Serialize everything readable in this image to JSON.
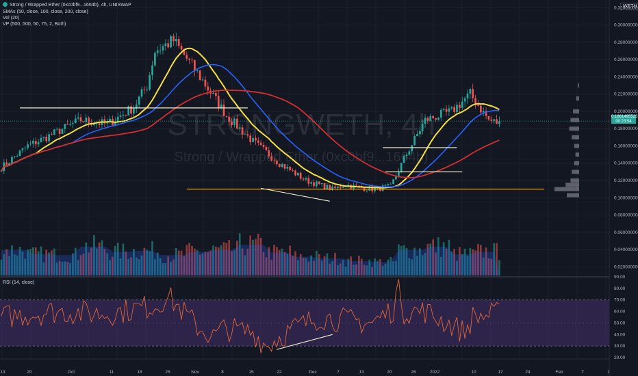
{
  "header": {
    "title": "Strong / Wrapped Ether (0xc0bf9...1664b), 4h, UNISWAP",
    "sma_label": "SMAs (50, close, 100, close, 200, close)",
    "vol_label": "Vol (20)",
    "vp_label": "VP (500, 500, 50, 75, 2, Both)",
    "currency": "WETH"
  },
  "price_badge": {
    "price": "0.1861495523",
    "sub": "00:23:54"
  },
  "rsi_label": "RSI (14, close)",
  "watermark": {
    "symbol": "STRONGWETH, 4h",
    "name": "Strong / Wrapped Ether (0xc0bf9...1664b)"
  },
  "colors": {
    "background": "#131722",
    "up": "#26a69a",
    "down": "#ef5350",
    "sma50": "#f5e042",
    "sma100": "#2962ff",
    "sma200": "#d32f2f",
    "hline_white": "#f0f0d0",
    "hline_orange": "#f5a623",
    "rsi_line": "#e0683b",
    "rsi_band": "#3b2a5a"
  },
  "chart_data": [
    {
      "type": "candlestick",
      "price_axis": {
        "ticks": [
          "0.3200000000",
          "0.3000000000",
          "0.2800000000",
          "0.2600000000",
          "0.2400000000",
          "0.2200000000",
          "0.2000000000",
          "0.1800000000",
          "0.1600000000",
          "0.1400000000",
          "0.1200000000",
          "0.1000000000",
          "0.0800000000",
          "0.0600000000",
          "0.0400000000",
          "0.0200000000"
        ],
        "ylim": [
          0.01,
          0.325
        ]
      },
      "time_axis": {
        "ticks": [
          "13",
          "20",
          "Oct",
          "11",
          "18",
          "25",
          "Nov",
          "8",
          "15",
          "22",
          "Dec",
          "7",
          "13",
          "20",
          "26",
          "2022",
          "10",
          "17",
          "24",
          "Feb",
          "7",
          "1"
        ]
      },
      "anchors": {
        "x": [
          0,
          10,
          17,
          22,
          30,
          40,
          50,
          55,
          58,
          65,
          75,
          85,
          95,
          105,
          115,
          125,
          130,
          135,
          140,
          147,
          152,
          160,
          170,
          177,
          184,
          188
        ],
        "close": [
          0.135,
          0.16,
          0.17,
          0.178,
          0.19,
          0.185,
          0.205,
          0.23,
          0.27,
          0.282,
          0.24,
          0.195,
          0.165,
          0.14,
          0.12,
          0.11,
          0.115,
          0.112,
          0.11,
          0.113,
          0.145,
          0.19,
          0.2,
          0.22,
          0.19,
          0.186
        ]
      },
      "bars": 189,
      "smas": [
        {
          "name": "SMA 50"
        },
        {
          "name": "SMA 100"
        },
        {
          "name": "SMA 200"
        }
      ],
      "volume": {
        "anchors": [
          0.03,
          0.025,
          0.024,
          0.034,
          0.028,
          0.029,
          0.024,
          0.028,
          0.03,
          0.036,
          0.027,
          0.022,
          0.02,
          0.017,
          0.016,
          0.03,
          0.034,
          0.025,
          0.028,
          0.03
        ]
      },
      "hlines": [
        {
          "y": 0.204,
          "x": [
            7,
            93
          ],
          "color": "white"
        },
        {
          "y": 0.11,
          "x": [
            70,
            205
          ],
          "color": "orange"
        },
        {
          "y": 0.158,
          "x": [
            144,
            172
          ],
          "color": "white"
        },
        {
          "y": 0.13,
          "x": [
            145,
            174
          ],
          "color": "white"
        }
      ],
      "trendline": {
        "x": [
          98,
          124
        ],
        "y": [
          0.111,
          0.096
        ]
      },
      "volume_profile": {
        "rows": [
          {
            "p": 0.103,
            "v": 0.5
          },
          {
            "p": 0.11,
            "v": 1.0
          },
          {
            "p": 0.115,
            "v": 0.55
          },
          {
            "p": 0.12,
            "v": 0.35
          },
          {
            "p": 0.13,
            "v": 0.3
          },
          {
            "p": 0.14,
            "v": 0.2
          },
          {
            "p": 0.15,
            "v": 0.15
          },
          {
            "p": 0.16,
            "v": 0.2
          },
          {
            "p": 0.17,
            "v": 0.3
          },
          {
            "p": 0.18,
            "v": 0.4
          },
          {
            "p": 0.19,
            "v": 0.35
          },
          {
            "p": 0.2,
            "v": 0.25
          },
          {
            "p": 0.215,
            "v": 0.12
          },
          {
            "p": 0.23,
            "v": 0.05
          }
        ]
      }
    },
    {
      "type": "line",
      "name": "RSI",
      "ylim": [
        20,
        90
      ],
      "axis_ticks": [
        "90.00",
        "80.00",
        "70.00",
        "60.00",
        "50.00",
        "40.00",
        "30.00",
        "20.00"
      ],
      "bands": [
        70,
        30
      ],
      "anchors": {
        "x": [
          0,
          20,
          40,
          60,
          62,
          75,
          80,
          84,
          95,
          100,
          110,
          120,
          140,
          148,
          150,
          152,
          160,
          175,
          178,
          188
        ],
        "rsi": [
          55,
          60,
          58,
          66,
          75,
          45,
          38,
          45,
          42,
          30,
          45,
          55,
          50,
          62,
          85,
          60,
          60,
          42,
          55,
          58
        ]
      },
      "trendline": {
        "x": [
          104,
          125
        ],
        "y": [
          27,
          40
        ]
      }
    }
  ]
}
